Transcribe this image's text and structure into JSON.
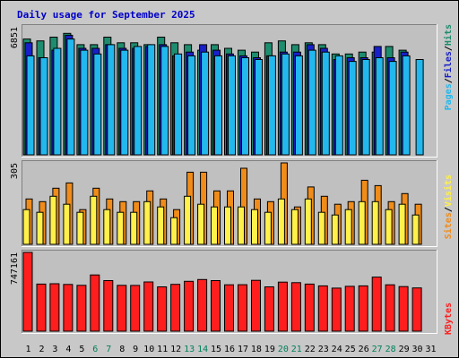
{
  "chart_data": {
    "type": "bar",
    "title": "Daily usage for September 2025",
    "categories": [
      "1",
      "2",
      "3",
      "4",
      "5",
      "6",
      "7",
      "8",
      "9",
      "10",
      "11",
      "12",
      "13",
      "14",
      "15",
      "16",
      "17",
      "18",
      "19",
      "20",
      "21",
      "22",
      "23",
      "24",
      "25",
      "26",
      "27",
      "28",
      "29",
      "30",
      "31"
    ],
    "weekend_days": [
      "6",
      "7",
      "13",
      "14",
      "20",
      "21",
      "27",
      "28"
    ],
    "legend": {
      "top": [
        "Pages",
        "Files",
        "Hits"
      ],
      "middle": [
        "Sites",
        "Visits"
      ],
      "bottom": [
        "KBytes"
      ]
    },
    "panels": [
      {
        "name": "requests",
        "ymax_label": "6851",
        "ymax": 6851,
        "series": [
          {
            "name": "Hits",
            "color": "#1e8c6e",
            "values": [
              6200,
              6100,
              6300,
              6500,
              5900,
              5900,
              6300,
              6000,
              6000,
              5900,
              6300,
              6000,
              5900,
              5600,
              5900,
              5700,
              5600,
              5500,
              6000,
              6100,
              5900,
              6000,
              5900,
              5400,
              5400,
              5500,
              5500,
              5800,
              5600,
              0,
              0
            ]
          },
          {
            "name": "Files",
            "color": "#1820c8",
            "values": [
              6000,
              5200,
              5600,
              6400,
              5700,
              5700,
              5900,
              5700,
              5700,
              5800,
              5900,
              5300,
              5500,
              5900,
              5600,
              5400,
              5300,
              5200,
              5300,
              5500,
              5500,
              5900,
              5700,
              5100,
              5200,
              5200,
              5800,
              5200,
              5500,
              0,
              0
            ]
          },
          {
            "name": "Pages",
            "color": "#22b8ee",
            "values": [
              5300,
              5200,
              5700,
              6200,
              5600,
              5400,
              5900,
              5600,
              5800,
              5900,
              5800,
              5400,
              5300,
              5500,
              5300,
              5300,
              5200,
              5100,
              5300,
              5400,
              5300,
              5600,
              5500,
              5300,
              5000,
              5100,
              5200,
              5000,
              5300,
              5100,
              0
            ]
          }
        ]
      },
      {
        "name": "visitors",
        "ymax_label": "305",
        "ymax": 305,
        "series": [
          {
            "name": "Sites",
            "color": "#f08c1a",
            "values": [
              170,
              160,
              210,
              230,
              130,
              210,
              170,
              160,
              160,
              200,
              170,
              130,
              270,
              270,
              200,
              200,
              285,
              170,
              160,
              305,
              140,
              215,
              180,
              150,
              160,
              240,
              220,
              160,
              190,
              150,
              0
            ]
          },
          {
            "name": "Visits",
            "color": "#fff04a",
            "values": [
              130,
              120,
              180,
              150,
              120,
              180,
              130,
              120,
              120,
              160,
              140,
              100,
              180,
              150,
              140,
              140,
              140,
              130,
              120,
              170,
              130,
              170,
              120,
              110,
              130,
              160,
              160,
              130,
              150,
              110,
              0
            ]
          }
        ]
      },
      {
        "name": "volume",
        "ymax_label": "747161",
        "ymax": 747161,
        "series": [
          {
            "name": "KBytes",
            "color": "#ff1e1e",
            "values": [
              747161,
              447000,
              450000,
              443000,
              435000,
              533000,
              480000,
              435000,
              434000,
              467000,
              420000,
              444000,
              473000,
              490000,
              480000,
              440000,
              441000,
              482000,
              420000,
              465000,
              460000,
              447000,
              430000,
              408000,
              425000,
              430000,
              513000,
              440000,
              423000,
              410000,
              0
            ]
          }
        ]
      }
    ]
  }
}
